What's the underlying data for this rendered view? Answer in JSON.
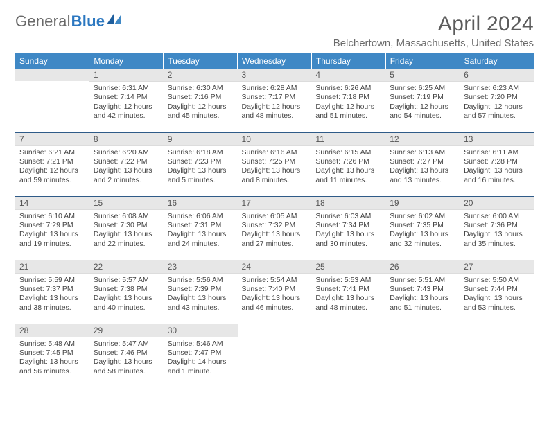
{
  "brand": {
    "general": "General",
    "blue": "Blue"
  },
  "title": "April 2024",
  "location": "Belchertown, Massachusetts, United States",
  "header_bg": "#3f88c5",
  "day_bar_bg": "#e7e7e7",
  "rule_color": "#2f5b88",
  "weekdays": [
    "Sunday",
    "Monday",
    "Tuesday",
    "Wednesday",
    "Thursday",
    "Friday",
    "Saturday"
  ],
  "weeks": [
    [
      null,
      {
        "n": "1",
        "sr": "Sunrise: 6:31 AM",
        "ss": "Sunset: 7:14 PM",
        "d1": "Daylight: 12 hours",
        "d2": "and 42 minutes."
      },
      {
        "n": "2",
        "sr": "Sunrise: 6:30 AM",
        "ss": "Sunset: 7:16 PM",
        "d1": "Daylight: 12 hours",
        "d2": "and 45 minutes."
      },
      {
        "n": "3",
        "sr": "Sunrise: 6:28 AM",
        "ss": "Sunset: 7:17 PM",
        "d1": "Daylight: 12 hours",
        "d2": "and 48 minutes."
      },
      {
        "n": "4",
        "sr": "Sunrise: 6:26 AM",
        "ss": "Sunset: 7:18 PM",
        "d1": "Daylight: 12 hours",
        "d2": "and 51 minutes."
      },
      {
        "n": "5",
        "sr": "Sunrise: 6:25 AM",
        "ss": "Sunset: 7:19 PM",
        "d1": "Daylight: 12 hours",
        "d2": "and 54 minutes."
      },
      {
        "n": "6",
        "sr": "Sunrise: 6:23 AM",
        "ss": "Sunset: 7:20 PM",
        "d1": "Daylight: 12 hours",
        "d2": "and 57 minutes."
      }
    ],
    [
      {
        "n": "7",
        "sr": "Sunrise: 6:21 AM",
        "ss": "Sunset: 7:21 PM",
        "d1": "Daylight: 12 hours",
        "d2": "and 59 minutes."
      },
      {
        "n": "8",
        "sr": "Sunrise: 6:20 AM",
        "ss": "Sunset: 7:22 PM",
        "d1": "Daylight: 13 hours",
        "d2": "and 2 minutes."
      },
      {
        "n": "9",
        "sr": "Sunrise: 6:18 AM",
        "ss": "Sunset: 7:23 PM",
        "d1": "Daylight: 13 hours",
        "d2": "and 5 minutes."
      },
      {
        "n": "10",
        "sr": "Sunrise: 6:16 AM",
        "ss": "Sunset: 7:25 PM",
        "d1": "Daylight: 13 hours",
        "d2": "and 8 minutes."
      },
      {
        "n": "11",
        "sr": "Sunrise: 6:15 AM",
        "ss": "Sunset: 7:26 PM",
        "d1": "Daylight: 13 hours",
        "d2": "and 11 minutes."
      },
      {
        "n": "12",
        "sr": "Sunrise: 6:13 AM",
        "ss": "Sunset: 7:27 PM",
        "d1": "Daylight: 13 hours",
        "d2": "and 13 minutes."
      },
      {
        "n": "13",
        "sr": "Sunrise: 6:11 AM",
        "ss": "Sunset: 7:28 PM",
        "d1": "Daylight: 13 hours",
        "d2": "and 16 minutes."
      }
    ],
    [
      {
        "n": "14",
        "sr": "Sunrise: 6:10 AM",
        "ss": "Sunset: 7:29 PM",
        "d1": "Daylight: 13 hours",
        "d2": "and 19 minutes."
      },
      {
        "n": "15",
        "sr": "Sunrise: 6:08 AM",
        "ss": "Sunset: 7:30 PM",
        "d1": "Daylight: 13 hours",
        "d2": "and 22 minutes."
      },
      {
        "n": "16",
        "sr": "Sunrise: 6:06 AM",
        "ss": "Sunset: 7:31 PM",
        "d1": "Daylight: 13 hours",
        "d2": "and 24 minutes."
      },
      {
        "n": "17",
        "sr": "Sunrise: 6:05 AM",
        "ss": "Sunset: 7:32 PM",
        "d1": "Daylight: 13 hours",
        "d2": "and 27 minutes."
      },
      {
        "n": "18",
        "sr": "Sunrise: 6:03 AM",
        "ss": "Sunset: 7:34 PM",
        "d1": "Daylight: 13 hours",
        "d2": "and 30 minutes."
      },
      {
        "n": "19",
        "sr": "Sunrise: 6:02 AM",
        "ss": "Sunset: 7:35 PM",
        "d1": "Daylight: 13 hours",
        "d2": "and 32 minutes."
      },
      {
        "n": "20",
        "sr": "Sunrise: 6:00 AM",
        "ss": "Sunset: 7:36 PM",
        "d1": "Daylight: 13 hours",
        "d2": "and 35 minutes."
      }
    ],
    [
      {
        "n": "21",
        "sr": "Sunrise: 5:59 AM",
        "ss": "Sunset: 7:37 PM",
        "d1": "Daylight: 13 hours",
        "d2": "and 38 minutes."
      },
      {
        "n": "22",
        "sr": "Sunrise: 5:57 AM",
        "ss": "Sunset: 7:38 PM",
        "d1": "Daylight: 13 hours",
        "d2": "and 40 minutes."
      },
      {
        "n": "23",
        "sr": "Sunrise: 5:56 AM",
        "ss": "Sunset: 7:39 PM",
        "d1": "Daylight: 13 hours",
        "d2": "and 43 minutes."
      },
      {
        "n": "24",
        "sr": "Sunrise: 5:54 AM",
        "ss": "Sunset: 7:40 PM",
        "d1": "Daylight: 13 hours",
        "d2": "and 46 minutes."
      },
      {
        "n": "25",
        "sr": "Sunrise: 5:53 AM",
        "ss": "Sunset: 7:41 PM",
        "d1": "Daylight: 13 hours",
        "d2": "and 48 minutes."
      },
      {
        "n": "26",
        "sr": "Sunrise: 5:51 AM",
        "ss": "Sunset: 7:43 PM",
        "d1": "Daylight: 13 hours",
        "d2": "and 51 minutes."
      },
      {
        "n": "27",
        "sr": "Sunrise: 5:50 AM",
        "ss": "Sunset: 7:44 PM",
        "d1": "Daylight: 13 hours",
        "d2": "and 53 minutes."
      }
    ],
    [
      {
        "n": "28",
        "sr": "Sunrise: 5:48 AM",
        "ss": "Sunset: 7:45 PM",
        "d1": "Daylight: 13 hours",
        "d2": "and 56 minutes."
      },
      {
        "n": "29",
        "sr": "Sunrise: 5:47 AM",
        "ss": "Sunset: 7:46 PM",
        "d1": "Daylight: 13 hours",
        "d2": "and 58 minutes."
      },
      {
        "n": "30",
        "sr": "Sunrise: 5:46 AM",
        "ss": "Sunset: 7:47 PM",
        "d1": "Daylight: 14 hours",
        "d2": "and 1 minute."
      },
      null,
      null,
      null,
      null
    ]
  ]
}
